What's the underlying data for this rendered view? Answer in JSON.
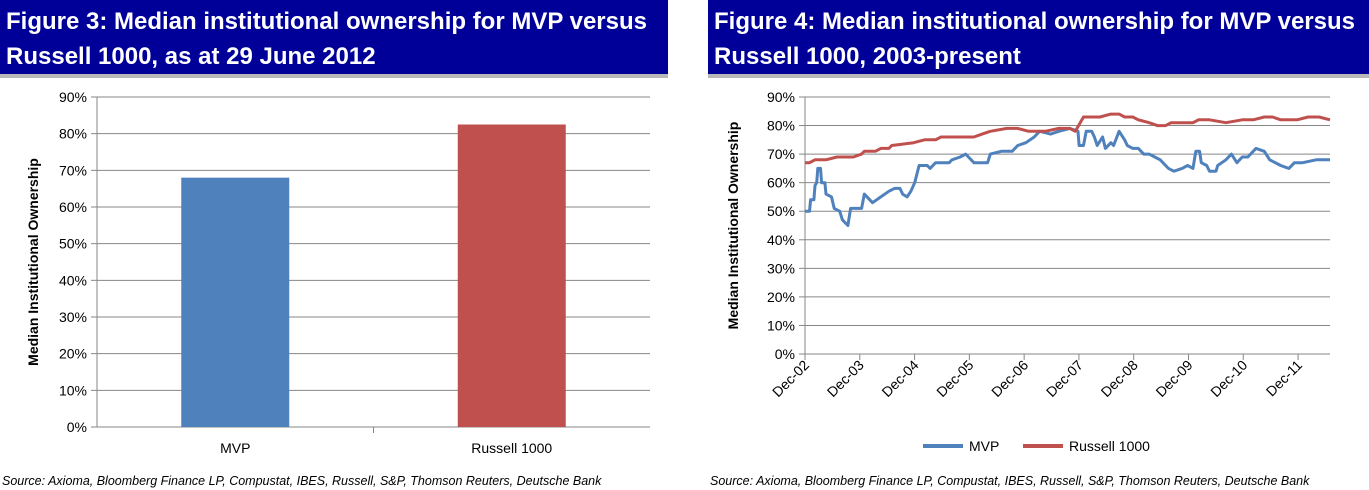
{
  "figures": [
    {
      "title_line1": "Figure 3: Median institutional ownership for MVP versus",
      "title_line2": "Russell 1000, as at 29 June 2012",
      "source": "Source: Axioma, Bloomberg Finance LP, Compustat, IBES, Russell, S&P, Thomson Reuters, Deutsche Bank"
    },
    {
      "title_line1": "Figure 4: Median institutional ownership for MVP versus",
      "title_line2": "Russell 1000, 2003-present",
      "source": "Source: Axioma, Bloomberg Finance LP, Compustat, IBES, Russell, S&P, Thomson Reuters, Deutsche Bank"
    }
  ],
  "chart_data": [
    {
      "type": "bar",
      "categories": [
        "MVP",
        "Russell 1000"
      ],
      "values": [
        0.68,
        0.825
      ],
      "colors": [
        "#4f81bd",
        "#c0504d"
      ],
      "xlabel": "",
      "ylabel": "Median Institutional Ownership",
      "ylim": [
        0,
        0.9
      ],
      "yticks": [
        "0%",
        "10%",
        "20%",
        "30%",
        "40%",
        "50%",
        "60%",
        "70%",
        "80%",
        "90%"
      ],
      "grid": true
    },
    {
      "type": "line",
      "xlabel": "",
      "ylabel": "Median Institutional Ownership",
      "xlim": [
        2002.917,
        2012.5
      ],
      "ylim": [
        0,
        0.9
      ],
      "yticks": [
        "0%",
        "10%",
        "20%",
        "30%",
        "40%",
        "50%",
        "60%",
        "70%",
        "80%",
        "90%"
      ],
      "xticks": [
        "Dec-02",
        "Dec-03",
        "Dec-04",
        "Dec-05",
        "Dec-06",
        "Dec-07",
        "Dec-08",
        "Dec-09",
        "Dec-10",
        "Dec-11"
      ],
      "xtick_values": [
        2002.917,
        2003.917,
        2004.917,
        2005.917,
        2006.917,
        2007.917,
        2008.917,
        2009.917,
        2010.917,
        2011.917
      ],
      "grid": true,
      "legend_position": "bottom",
      "series": [
        {
          "name": "MVP",
          "color": "#4f81bd",
          "points": [
            [
              2002.92,
              0.5
            ],
            [
              2003.0,
              0.5
            ],
            [
              2003.02,
              0.54
            ],
            [
              2003.08,
              0.54
            ],
            [
              2003.1,
              0.59
            ],
            [
              2003.13,
              0.6
            ],
            [
              2003.15,
              0.65
            ],
            [
              2003.2,
              0.65
            ],
            [
              2003.22,
              0.6
            ],
            [
              2003.28,
              0.6
            ],
            [
              2003.3,
              0.56
            ],
            [
              2003.4,
              0.55
            ],
            [
              2003.45,
              0.51
            ],
            [
              2003.55,
              0.5
            ],
            [
              2003.6,
              0.47
            ],
            [
              2003.7,
              0.45
            ],
            [
              2003.75,
              0.51
            ],
            [
              2003.95,
              0.51
            ],
            [
              2004.0,
              0.56
            ],
            [
              2004.1,
              0.54
            ],
            [
              2004.15,
              0.53
            ],
            [
              2004.3,
              0.55
            ],
            [
              2004.45,
              0.57
            ],
            [
              2004.55,
              0.58
            ],
            [
              2004.65,
              0.58
            ],
            [
              2004.7,
              0.56
            ],
            [
              2004.78,
              0.55
            ],
            [
              2004.85,
              0.57
            ],
            [
              2004.92,
              0.6
            ],
            [
              2005.0,
              0.66
            ],
            [
              2005.15,
              0.66
            ],
            [
              2005.2,
              0.65
            ],
            [
              2005.3,
              0.67
            ],
            [
              2005.55,
              0.67
            ],
            [
              2005.6,
              0.68
            ],
            [
              2005.75,
              0.69
            ],
            [
              2005.85,
              0.7
            ],
            [
              2006.0,
              0.67
            ],
            [
              2006.25,
              0.67
            ],
            [
              2006.3,
              0.7
            ],
            [
              2006.5,
              0.71
            ],
            [
              2006.7,
              0.71
            ],
            [
              2006.8,
              0.73
            ],
            [
              2006.95,
              0.74
            ],
            [
              2007.1,
              0.76
            ],
            [
              2007.2,
              0.78
            ],
            [
              2007.4,
              0.77
            ],
            [
              2007.55,
              0.78
            ],
            [
              2007.75,
              0.79
            ],
            [
              2007.9,
              0.78
            ],
            [
              2007.92,
              0.73
            ],
            [
              2008.0,
              0.73
            ],
            [
              2008.05,
              0.78
            ],
            [
              2008.15,
              0.78
            ],
            [
              2008.2,
              0.76
            ],
            [
              2008.25,
              0.73
            ],
            [
              2008.35,
              0.76
            ],
            [
              2008.4,
              0.72
            ],
            [
              2008.5,
              0.74
            ],
            [
              2008.55,
              0.73
            ],
            [
              2008.65,
              0.78
            ],
            [
              2008.75,
              0.75
            ],
            [
              2008.8,
              0.73
            ],
            [
              2008.9,
              0.72
            ],
            [
              2009.0,
              0.72
            ],
            [
              2009.1,
              0.7
            ],
            [
              2009.2,
              0.7
            ],
            [
              2009.3,
              0.69
            ],
            [
              2009.4,
              0.68
            ],
            [
              2009.55,
              0.65
            ],
            [
              2009.65,
              0.64
            ],
            [
              2009.8,
              0.65
            ],
            [
              2009.9,
              0.66
            ],
            [
              2010.0,
              0.65
            ],
            [
              2010.05,
              0.71
            ],
            [
              2010.12,
              0.71
            ],
            [
              2010.15,
              0.67
            ],
            [
              2010.25,
              0.66
            ],
            [
              2010.3,
              0.64
            ],
            [
              2010.42,
              0.64
            ],
            [
              2010.45,
              0.66
            ],
            [
              2010.6,
              0.68
            ],
            [
              2010.7,
              0.7
            ],
            [
              2010.8,
              0.67
            ],
            [
              2010.9,
              0.69
            ],
            [
              2011.0,
              0.69
            ],
            [
              2011.05,
              0.7
            ],
            [
              2011.15,
              0.72
            ],
            [
              2011.3,
              0.71
            ],
            [
              2011.4,
              0.68
            ],
            [
              2011.6,
              0.66
            ],
            [
              2011.75,
              0.65
            ],
            [
              2011.85,
              0.67
            ],
            [
              2012.0,
              0.67
            ],
            [
              2012.25,
              0.68
            ],
            [
              2012.5,
              0.68
            ]
          ]
        },
        {
          "name": "Russell 1000",
          "color": "#c0504d",
          "points": [
            [
              2002.92,
              0.67
            ],
            [
              2003.0,
              0.67
            ],
            [
              2003.1,
              0.68
            ],
            [
              2003.3,
              0.68
            ],
            [
              2003.5,
              0.69
            ],
            [
              2003.8,
              0.69
            ],
            [
              2003.95,
              0.7
            ],
            [
              2004.0,
              0.71
            ],
            [
              2004.2,
              0.71
            ],
            [
              2004.3,
              0.72
            ],
            [
              2004.45,
              0.72
            ],
            [
              2004.5,
              0.73
            ],
            [
              2004.9,
              0.74
            ],
            [
              2005.1,
              0.75
            ],
            [
              2005.3,
              0.75
            ],
            [
              2005.4,
              0.76
            ],
            [
              2006.0,
              0.76
            ],
            [
              2006.15,
              0.77
            ],
            [
              2006.3,
              0.78
            ],
            [
              2006.6,
              0.79
            ],
            [
              2006.8,
              0.79
            ],
            [
              2007.0,
              0.78
            ],
            [
              2007.3,
              0.78
            ],
            [
              2007.55,
              0.79
            ],
            [
              2007.75,
              0.79
            ],
            [
              2007.85,
              0.78
            ],
            [
              2008.0,
              0.83
            ],
            [
              2008.3,
              0.83
            ],
            [
              2008.5,
              0.84
            ],
            [
              2008.65,
              0.84
            ],
            [
              2008.75,
              0.83
            ],
            [
              2008.9,
              0.83
            ],
            [
              2009.0,
              0.82
            ],
            [
              2009.2,
              0.81
            ],
            [
              2009.35,
              0.8
            ],
            [
              2009.5,
              0.8
            ],
            [
              2009.6,
              0.81
            ],
            [
              2010.0,
              0.81
            ],
            [
              2010.1,
              0.82
            ],
            [
              2010.3,
              0.82
            ],
            [
              2010.6,
              0.81
            ],
            [
              2010.9,
              0.82
            ],
            [
              2011.1,
              0.82
            ],
            [
              2011.3,
              0.83
            ],
            [
              2011.45,
              0.83
            ],
            [
              2011.6,
              0.82
            ],
            [
              2011.9,
              0.82
            ],
            [
              2012.1,
              0.83
            ],
            [
              2012.3,
              0.83
            ],
            [
              2012.5,
              0.82
            ]
          ]
        }
      ]
    }
  ]
}
